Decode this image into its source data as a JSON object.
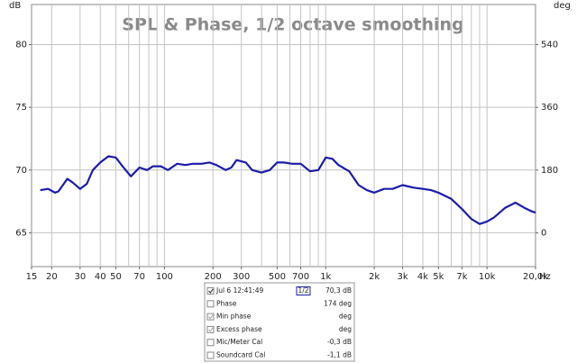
{
  "chart_data": {
    "type": "line",
    "title": "SPL & Phase, 1/2 octave smoothing",
    "y_axis_label": "dB",
    "y2_axis_label": "deg",
    "x_axis_label": "Hz",
    "x_scale": "log",
    "grid": true,
    "xlim": [
      15,
      20000
    ],
    "xticks": [
      15,
      20,
      30,
      40,
      50,
      70,
      100,
      200,
      300,
      500,
      700,
      {
        "value": 1000,
        "label": "1k"
      },
      {
        "value": 2000,
        "label": "2k"
      },
      {
        "value": 3000,
        "label": "3k"
      },
      {
        "value": 4000,
        "label": "4k"
      },
      {
        "value": 5000,
        "label": "5k"
      },
      {
        "value": 7000,
        "label": "7k"
      },
      {
        "value": 10000,
        "label": "10k"
      },
      {
        "value": 20000,
        "label": "20,0k"
      }
    ],
    "x_minor_grid": [
      20,
      30,
      40,
      50,
      60,
      70,
      80,
      90,
      100,
      200,
      300,
      400,
      500,
      600,
      700,
      800,
      900,
      1000,
      2000,
      3000,
      4000,
      5000,
      6000,
      7000,
      8000,
      9000,
      10000
    ],
    "ylim": [
      62.3,
      83.2
    ],
    "yticks": [
      65,
      70,
      75,
      80
    ],
    "y2lim": [
      -97,
      655
    ],
    "y2ticks": [
      0,
      180,
      360,
      540
    ],
    "x": [
      17,
      19,
      21,
      22,
      25,
      27,
      30,
      33,
      36,
      40,
      45,
      50,
      55,
      62,
      70,
      78,
      85,
      95,
      105,
      120,
      135,
      150,
      170,
      190,
      210,
      240,
      260,
      280,
      320,
      350,
      400,
      450,
      500,
      550,
      620,
      700,
      800,
      900,
      1000,
      1100,
      1200,
      1400,
      1600,
      1800,
      2000,
      2300,
      2600,
      3000,
      3500,
      4000,
      4500,
      5000,
      6000,
      7000,
      8000,
      9000,
      10000,
      11000,
      13000,
      15000,
      17000,
      19000,
      20000
    ],
    "series": [
      {
        "name": "Jul 6 12:41:49",
        "color": "#1c1caa",
        "values": [
          68.4,
          68.5,
          68.2,
          68.3,
          69.3,
          69.0,
          68.5,
          68.9,
          70.0,
          70.6,
          71.1,
          71.0,
          70.3,
          69.5,
          70.2,
          70.0,
          70.3,
          70.3,
          70.0,
          70.5,
          70.4,
          70.5,
          70.5,
          70.6,
          70.4,
          70.0,
          70.2,
          70.8,
          70.6,
          70.0,
          69.8,
          70.0,
          70.6,
          70.6,
          70.5,
          70.5,
          69.9,
          70.0,
          71.0,
          70.9,
          70.4,
          69.9,
          68.8,
          68.4,
          68.2,
          68.5,
          68.5,
          68.8,
          68.6,
          68.5,
          68.4,
          68.2,
          67.7,
          66.9,
          66.1,
          65.7,
          65.9,
          66.2,
          67.0,
          67.4,
          67.0,
          66.7,
          66.6
        ]
      }
    ]
  },
  "legend_panel": {
    "rows": [
      {
        "name": "Jul 6 12:41:49",
        "smoothing": "1/2",
        "value": "70,3 dB",
        "checked": true,
        "enabled": true
      },
      {
        "name": "Phase",
        "value": "174 deg",
        "checked": false,
        "enabled": true
      },
      {
        "name": "Min phase",
        "value": "deg",
        "checked": true,
        "enabled": false
      },
      {
        "name": "Excess phase",
        "value": "deg",
        "checked": true,
        "enabled": false
      },
      {
        "name": "Mic/Meter Cal",
        "value": "-0,3 dB",
        "checked": false,
        "enabled": true
      },
      {
        "name": "Soundcard Cal",
        "value": "-1,1 dB",
        "checked": false,
        "enabled": true
      }
    ]
  }
}
